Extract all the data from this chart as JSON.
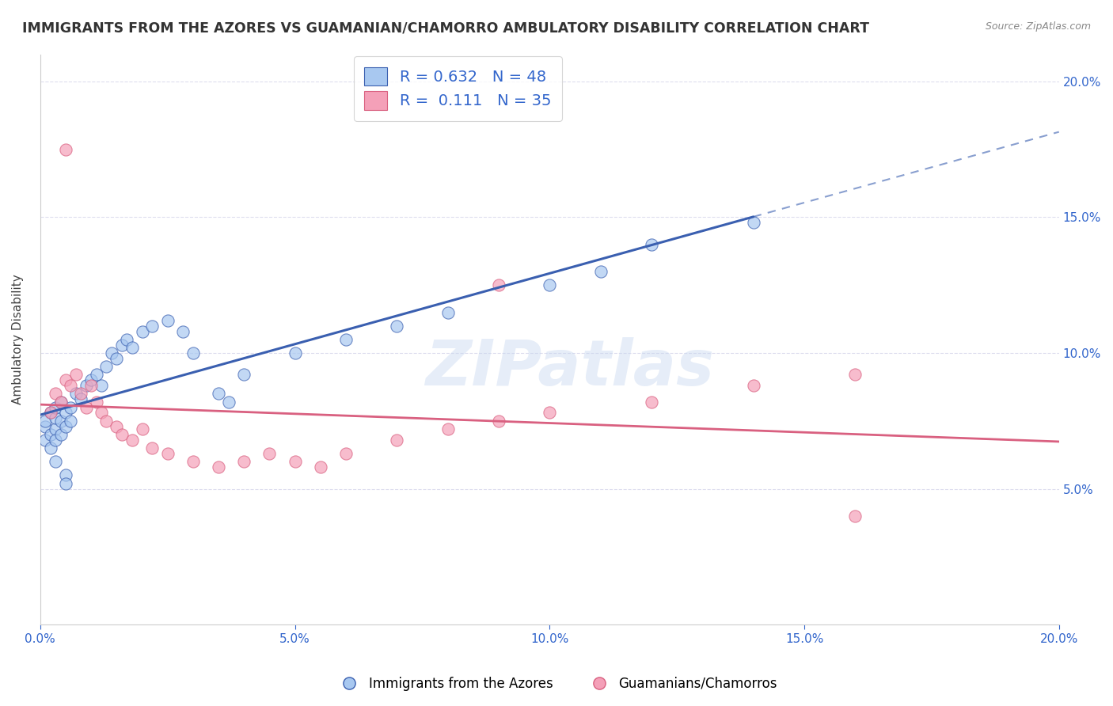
{
  "title": "IMMIGRANTS FROM THE AZORES VS GUAMANIAN/CHAMORRO AMBULATORY DISABILITY CORRELATION CHART",
  "source": "Source: ZipAtlas.com",
  "ylabel": "Ambulatory Disability",
  "xlim": [
    0.0,
    0.2
  ],
  "ylim": [
    0.0,
    0.21
  ],
  "yticks_right": [
    0.05,
    0.1,
    0.15,
    0.2
  ],
  "xticks": [
    0.0,
    0.05,
    0.1,
    0.15,
    0.2
  ],
  "blue_R": 0.632,
  "blue_N": 48,
  "pink_R": 0.111,
  "pink_N": 35,
  "blue_color": "#a8c8f0",
  "pink_color": "#f4a0b8",
  "blue_line_color": "#3a5fb0",
  "pink_line_color": "#d96080",
  "legend_R_color": "#3366cc",
  "watermark": "ZIPatlas",
  "blue_points": [
    [
      0.001,
      0.073
    ],
    [
      0.001,
      0.068
    ],
    [
      0.001,
      0.075
    ],
    [
      0.002,
      0.078
    ],
    [
      0.002,
      0.07
    ],
    [
      0.002,
      0.065
    ],
    [
      0.003,
      0.072
    ],
    [
      0.003,
      0.068
    ],
    [
      0.003,
      0.076
    ],
    [
      0.003,
      0.08
    ],
    [
      0.004,
      0.075
    ],
    [
      0.004,
      0.07
    ],
    [
      0.004,
      0.082
    ],
    [
      0.005,
      0.078
    ],
    [
      0.005,
      0.073
    ],
    [
      0.005,
      0.055
    ],
    [
      0.006,
      0.08
    ],
    [
      0.006,
      0.075
    ],
    [
      0.007,
      0.085
    ],
    [
      0.008,
      0.083
    ],
    [
      0.009,
      0.088
    ],
    [
      0.01,
      0.09
    ],
    [
      0.011,
      0.092
    ],
    [
      0.012,
      0.088
    ],
    [
      0.013,
      0.095
    ],
    [
      0.014,
      0.1
    ],
    [
      0.015,
      0.098
    ],
    [
      0.016,
      0.103
    ],
    [
      0.017,
      0.105
    ],
    [
      0.018,
      0.102
    ],
    [
      0.02,
      0.108
    ],
    [
      0.022,
      0.11
    ],
    [
      0.025,
      0.112
    ],
    [
      0.028,
      0.108
    ],
    [
      0.03,
      0.1
    ],
    [
      0.035,
      0.085
    ],
    [
      0.037,
      0.082
    ],
    [
      0.04,
      0.092
    ],
    [
      0.05,
      0.1
    ],
    [
      0.06,
      0.105
    ],
    [
      0.07,
      0.11
    ],
    [
      0.08,
      0.115
    ],
    [
      0.1,
      0.125
    ],
    [
      0.11,
      0.13
    ],
    [
      0.12,
      0.14
    ],
    [
      0.14,
      0.148
    ],
    [
      0.005,
      0.052
    ],
    [
      0.003,
      0.06
    ]
  ],
  "pink_points": [
    [
      0.002,
      0.078
    ],
    [
      0.003,
      0.085
    ],
    [
      0.004,
      0.082
    ],
    [
      0.005,
      0.09
    ],
    [
      0.006,
      0.088
    ],
    [
      0.007,
      0.092
    ],
    [
      0.008,
      0.085
    ],
    [
      0.009,
      0.08
    ],
    [
      0.01,
      0.088
    ],
    [
      0.011,
      0.082
    ],
    [
      0.012,
      0.078
    ],
    [
      0.013,
      0.075
    ],
    [
      0.015,
      0.073
    ],
    [
      0.016,
      0.07
    ],
    [
      0.018,
      0.068
    ],
    [
      0.02,
      0.072
    ],
    [
      0.022,
      0.065
    ],
    [
      0.025,
      0.063
    ],
    [
      0.03,
      0.06
    ],
    [
      0.035,
      0.058
    ],
    [
      0.04,
      0.06
    ],
    [
      0.045,
      0.063
    ],
    [
      0.05,
      0.06
    ],
    [
      0.055,
      0.058
    ],
    [
      0.06,
      0.063
    ],
    [
      0.07,
      0.068
    ],
    [
      0.08,
      0.072
    ],
    [
      0.09,
      0.075
    ],
    [
      0.1,
      0.078
    ],
    [
      0.12,
      0.082
    ],
    [
      0.14,
      0.088
    ],
    [
      0.16,
      0.092
    ],
    [
      0.005,
      0.175
    ],
    [
      0.09,
      0.125
    ],
    [
      0.16,
      0.04
    ]
  ],
  "background_color": "#ffffff",
  "grid_color": "#ddddee"
}
